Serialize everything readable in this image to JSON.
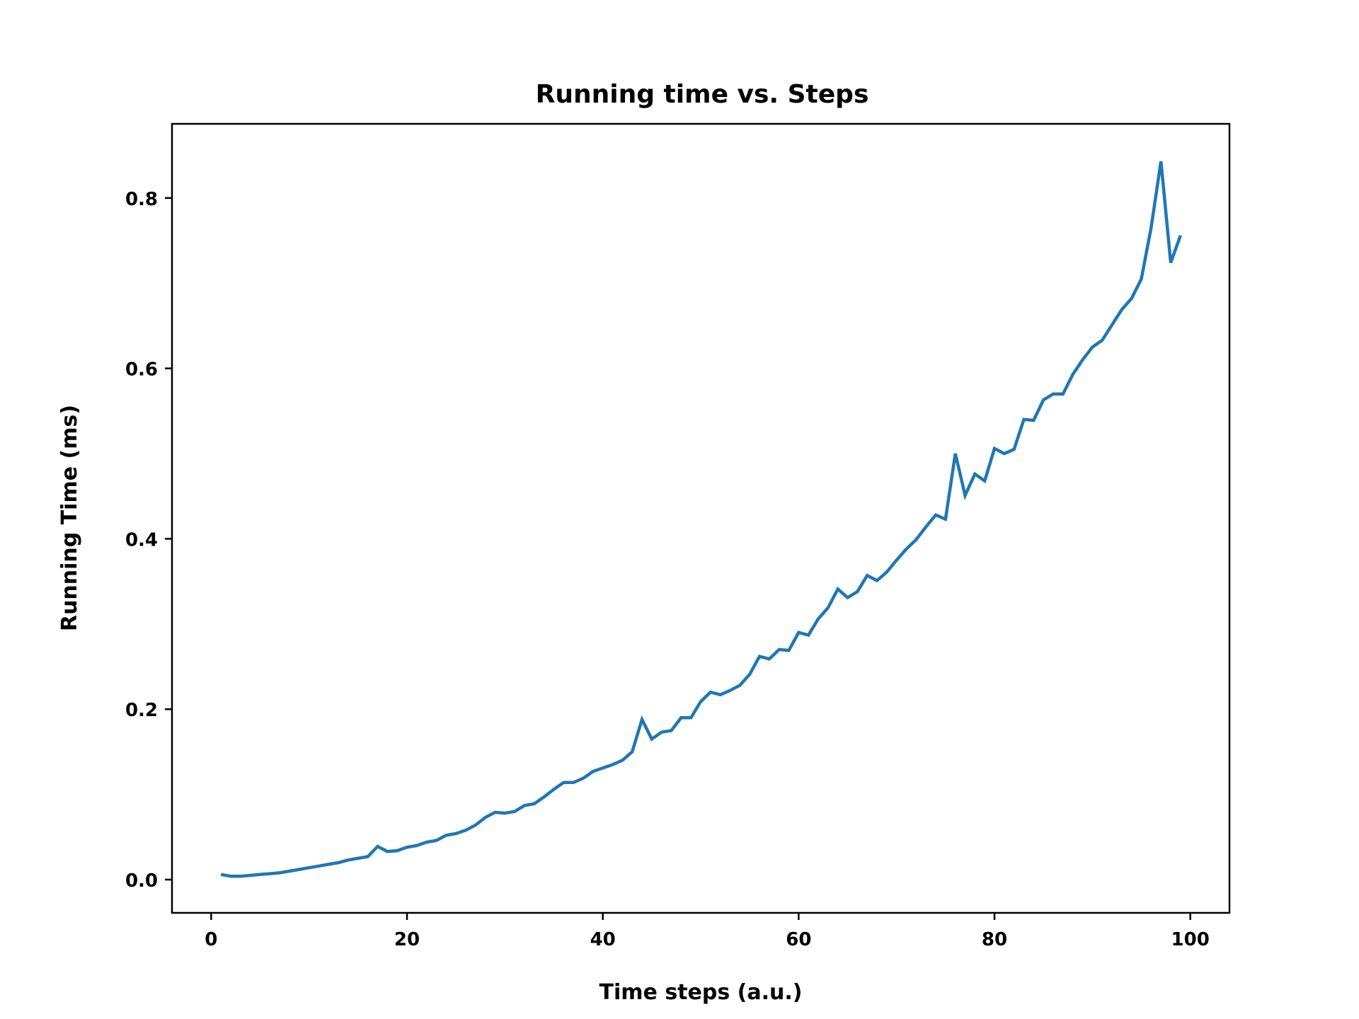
{
  "chart_data": {
    "type": "line",
    "title": "Running time vs. Steps",
    "xlabel": "Time steps (a.u.)",
    "ylabel": "Running Time (ms)",
    "xlim": [
      -4,
      104
    ],
    "ylim": [
      -0.039,
      0.887
    ],
    "xticks": [
      0,
      20,
      40,
      60,
      80,
      100
    ],
    "yticks": [
      0.0,
      0.2,
      0.4,
      0.6,
      0.8
    ],
    "xtick_labels": [
      "0",
      "20",
      "40",
      "60",
      "80",
      "100"
    ],
    "ytick_labels": [
      "0.0",
      "0.2",
      "0.4",
      "0.6",
      "0.8"
    ],
    "grid": false,
    "colors": {
      "line": "#1f77b4",
      "axes": "#000000"
    },
    "series": [
      {
        "x": [
          1,
          2,
          3,
          4,
          5,
          6,
          7,
          8,
          9,
          10,
          11,
          12,
          13,
          14,
          15,
          16,
          17,
          18,
          19,
          20,
          21,
          22,
          23,
          24,
          25,
          26,
          27,
          28,
          29,
          30,
          31,
          32,
          33,
          34,
          35,
          36,
          37,
          38,
          39,
          40,
          41,
          42,
          43,
          44,
          45,
          46,
          47,
          48,
          49,
          50,
          51,
          52,
          53,
          54,
          55,
          56,
          57,
          58,
          59,
          60,
          61,
          62,
          63,
          64,
          65,
          66,
          67,
          68,
          69,
          70,
          71,
          72,
          73,
          74,
          75,
          76,
          77,
          78,
          79,
          80,
          81,
          82,
          83,
          84,
          85,
          86,
          87,
          88,
          89,
          90,
          91,
          92,
          93,
          94,
          95,
          96,
          97,
          98,
          99
        ],
        "values": [
          0.006,
          0.004,
          0.004,
          0.005,
          0.006,
          0.007,
          0.008,
          0.01,
          0.012,
          0.014,
          0.016,
          0.018,
          0.02,
          0.023,
          0.025,
          0.027,
          0.039,
          0.033,
          0.034,
          0.038,
          0.04,
          0.044,
          0.046,
          0.052,
          0.054,
          0.058,
          0.064,
          0.073,
          0.079,
          0.078,
          0.08,
          0.087,
          0.089,
          0.097,
          0.106,
          0.114,
          0.114,
          0.119,
          0.127,
          0.131,
          0.135,
          0.14,
          0.15,
          0.188,
          0.165,
          0.173,
          0.175,
          0.19,
          0.19,
          0.209,
          0.22,
          0.217,
          0.222,
          0.228,
          0.241,
          0.262,
          0.259,
          0.27,
          0.269,
          0.29,
          0.287,
          0.306,
          0.319,
          0.341,
          0.331,
          0.338,
          0.357,
          0.351,
          0.361,
          0.375,
          0.388,
          0.399,
          0.414,
          0.428,
          0.423,
          0.5,
          0.451,
          0.476,
          0.468,
          0.506,
          0.5,
          0.505,
          0.54,
          0.539,
          0.563,
          0.57,
          0.57,
          0.593,
          0.61,
          0.625,
          0.633,
          0.651,
          0.669,
          0.682,
          0.705,
          0.765,
          0.843,
          0.724,
          0.756
        ]
      }
    ]
  }
}
